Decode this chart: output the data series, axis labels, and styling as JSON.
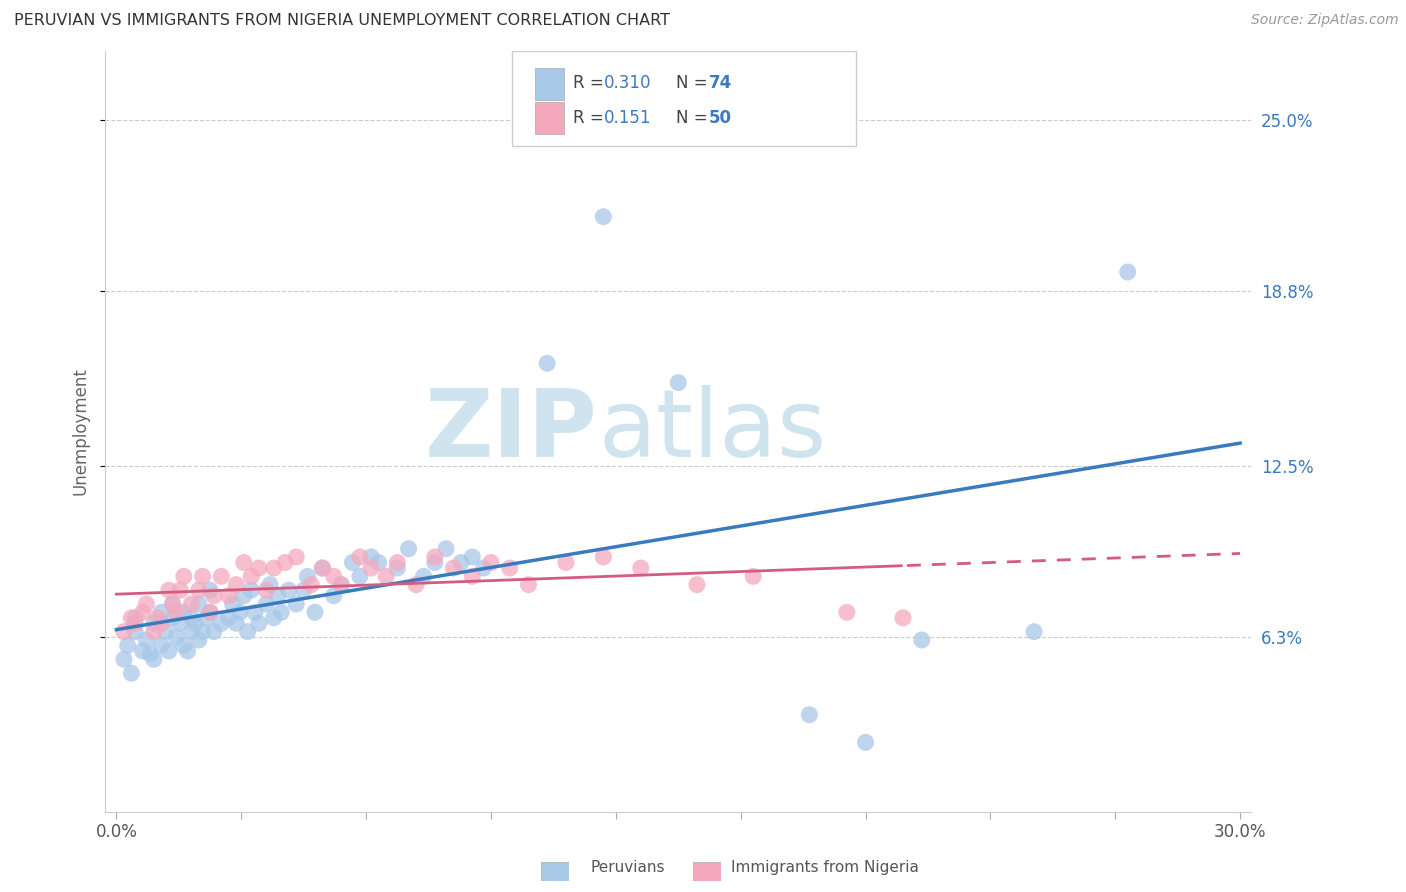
{
  "title": "PERUVIAN VS IMMIGRANTS FROM NIGERIA UNEMPLOYMENT CORRELATION CHART",
  "source": "Source: ZipAtlas.com",
  "ylabel": "Unemployment",
  "ytick_labels": [
    "6.3%",
    "12.5%",
    "18.8%",
    "25.0%"
  ],
  "ytick_values": [
    0.063,
    0.125,
    0.188,
    0.25
  ],
  "xlim": [
    0.0,
    0.3
  ],
  "ylim": [
    0.0,
    0.275
  ],
  "color_blue": "#a8c8e8",
  "color_pink": "#f4a8be",
  "line_color_blue": "#3a7abf",
  "line_color_pink": "#d45c80",
  "legend_text_color": "#3a7abf",
  "legend_r_color": "#444444",
  "watermark_color": "#d0e4f0",
  "peruvians_x": [
    0.002,
    0.003,
    0.004,
    0.005,
    0.005,
    0.007,
    0.008,
    0.009,
    0.01,
    0.01,
    0.012,
    0.012,
    0.013,
    0.014,
    0.015,
    0.015,
    0.016,
    0.017,
    0.018,
    0.018,
    0.019,
    0.02,
    0.02,
    0.021,
    0.022,
    0.022,
    0.023,
    0.024,
    0.025,
    0.025,
    0.026,
    0.028,
    0.03,
    0.031,
    0.032,
    0.033,
    0.034,
    0.035,
    0.036,
    0.037,
    0.038,
    0.04,
    0.041,
    0.042,
    0.043,
    0.044,
    0.046,
    0.048,
    0.05,
    0.051,
    0.053,
    0.055,
    0.058,
    0.06,
    0.063,
    0.065,
    0.068,
    0.07,
    0.075,
    0.078,
    0.082,
    0.085,
    0.088,
    0.092,
    0.095,
    0.098,
    0.115,
    0.13,
    0.15,
    0.185,
    0.2,
    0.215,
    0.245,
    0.27
  ],
  "peruvians_y": [
    0.055,
    0.06,
    0.05,
    0.065,
    0.07,
    0.058,
    0.062,
    0.057,
    0.055,
    0.068,
    0.06,
    0.072,
    0.065,
    0.058,
    0.07,
    0.075,
    0.063,
    0.068,
    0.06,
    0.072,
    0.058,
    0.065,
    0.07,
    0.068,
    0.062,
    0.075,
    0.065,
    0.07,
    0.072,
    0.08,
    0.065,
    0.068,
    0.07,
    0.075,
    0.068,
    0.072,
    0.078,
    0.065,
    0.08,
    0.072,
    0.068,
    0.075,
    0.082,
    0.07,
    0.078,
    0.072,
    0.08,
    0.075,
    0.08,
    0.085,
    0.072,
    0.088,
    0.078,
    0.082,
    0.09,
    0.085,
    0.092,
    0.09,
    0.088,
    0.095,
    0.085,
    0.09,
    0.095,
    0.09,
    0.092,
    0.088,
    0.162,
    0.215,
    0.155,
    0.035,
    0.025,
    0.062,
    0.065,
    0.195
  ],
  "nigeria_x": [
    0.002,
    0.004,
    0.005,
    0.007,
    0.008,
    0.01,
    0.011,
    0.012,
    0.014,
    0.015,
    0.016,
    0.017,
    0.018,
    0.02,
    0.022,
    0.023,
    0.025,
    0.026,
    0.028,
    0.03,
    0.032,
    0.034,
    0.036,
    0.038,
    0.04,
    0.042,
    0.045,
    0.048,
    0.052,
    0.055,
    0.058,
    0.06,
    0.065,
    0.068,
    0.072,
    0.075,
    0.08,
    0.085,
    0.09,
    0.095,
    0.1,
    0.105,
    0.11,
    0.12,
    0.13,
    0.14,
    0.155,
    0.17,
    0.195,
    0.21
  ],
  "nigeria_y": [
    0.065,
    0.07,
    0.068,
    0.072,
    0.075,
    0.065,
    0.07,
    0.068,
    0.08,
    0.075,
    0.072,
    0.08,
    0.085,
    0.075,
    0.08,
    0.085,
    0.072,
    0.078,
    0.085,
    0.078,
    0.082,
    0.09,
    0.085,
    0.088,
    0.08,
    0.088,
    0.09,
    0.092,
    0.082,
    0.088,
    0.085,
    0.082,
    0.092,
    0.088,
    0.085,
    0.09,
    0.082,
    0.092,
    0.088,
    0.085,
    0.09,
    0.088,
    0.082,
    0.09,
    0.092,
    0.088,
    0.082,
    0.085,
    0.072,
    0.07
  ]
}
